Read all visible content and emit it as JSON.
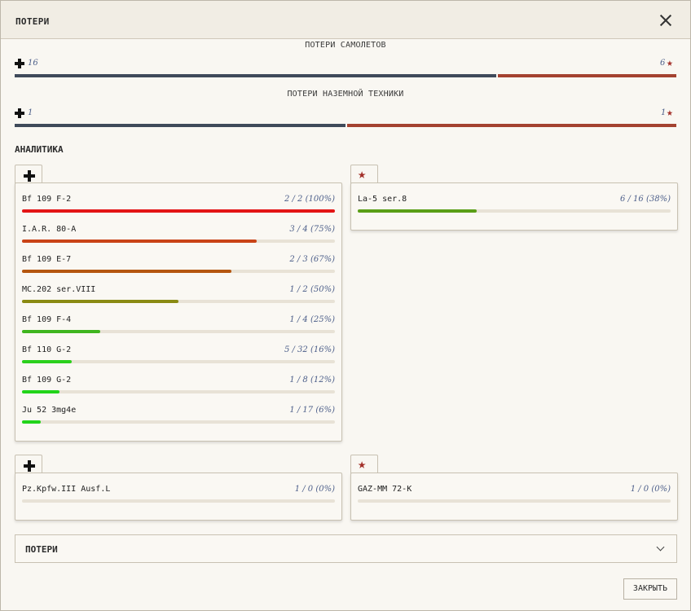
{
  "window": {
    "title": "ПОТЕРИ"
  },
  "losses": {
    "aircraft": {
      "caption": "ПОТЕРИ САМОЛЕТОВ",
      "left_value": "16",
      "right_value": "6",
      "left_share": 0.7273
    },
    "ground": {
      "caption": "ПОТЕРИ НАЗЕМНОЙ ТЕХНИКИ",
      "left_value": "1",
      "right_value": "1",
      "left_share": 0.5
    }
  },
  "analytics": {
    "title": "АНАЛИТИКА",
    "axis_aircraft": [
      {
        "name": "Bf 109 F-2",
        "stat": "2 / 2 (100%)",
        "pct": 1.0,
        "color": "#e31515"
      },
      {
        "name": "I.A.R. 80-A",
        "stat": "3 / 4 (75%)",
        "pct": 0.75,
        "color": "#c94316"
      },
      {
        "name": "Bf 109 E-7",
        "stat": "2 / 3 (67%)",
        "pct": 0.67,
        "color": "#b5560f"
      },
      {
        "name": "MC.202 ser.VIII",
        "stat": "1 / 2 (50%)",
        "pct": 0.5,
        "color": "#8a8a12"
      },
      {
        "name": "Bf 109 F-4",
        "stat": "1 / 4 (25%)",
        "pct": 0.25,
        "color": "#3fb51e"
      },
      {
        "name": "Bf 110 G-2",
        "stat": "5 / 32 (16%)",
        "pct": 0.16,
        "color": "#2bd01c"
      },
      {
        "name": "Bf 109 G-2",
        "stat": "1 / 8 (12%)",
        "pct": 0.12,
        "color": "#22d41a"
      },
      {
        "name": "Ju 52 3mg4e",
        "stat": "1 / 17 (6%)",
        "pct": 0.06,
        "color": "#22d41a"
      }
    ],
    "allied_aircraft": [
      {
        "name": "La-5 ser.8",
        "stat": "6 / 16 (38%)",
        "pct": 0.38,
        "color": "#5a9e16"
      }
    ],
    "axis_ground": [
      {
        "name": "Pz.Kpfw.III Ausf.L",
        "stat": "1 / 0 (0%)",
        "pct": 0,
        "color": "#22d41a"
      }
    ],
    "allied_ground": [
      {
        "name": "GAZ-MM 72-K",
        "stat": "1 / 0 (0%)",
        "pct": 0,
        "color": "#22d41a"
      }
    ]
  },
  "accordion": {
    "label": "ПОТЕРИ"
  },
  "footer": {
    "close_label": "ЗАКРЫТЬ"
  },
  "colors": {
    "axis_bar": "#3f4a5a",
    "allied_bar": "#a44230",
    "star": "#a3302a"
  }
}
